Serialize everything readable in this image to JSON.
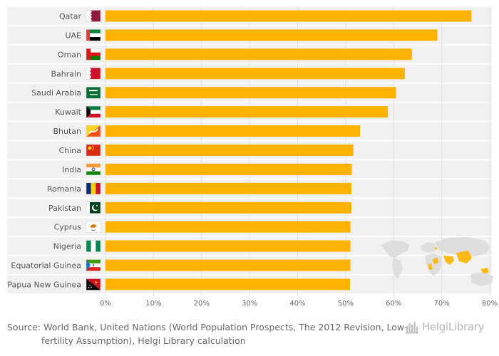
{
  "chart_data": {
    "type": "bar",
    "orientation": "horizontal",
    "title": "",
    "xlabel": "",
    "ylabel": "",
    "xlim": [
      0,
      80
    ],
    "x_ticks": [
      0,
      10,
      20,
      30,
      40,
      50,
      60,
      70,
      80
    ],
    "x_tick_labels": [
      "0%",
      "10%",
      "20%",
      "30%",
      "40%",
      "50%",
      "60%",
      "70%",
      "80%"
    ],
    "grid": true,
    "bar_color": "#ffb300",
    "categories": [
      "Qatar",
      "UAE",
      "Oman",
      "Bahrain",
      "Saudi Arabia",
      "Kuwait",
      "Bhutan",
      "China",
      "India",
      "Romania",
      "Pakistan",
      "Cyprus",
      "Nigeria",
      "Equatorial Guinea",
      "Papua New Guinea"
    ],
    "values": [
      76.2,
      69.1,
      63.8,
      62.3,
      60.5,
      58.8,
      53.0,
      51.6,
      51.3,
      51.2,
      51.2,
      51.0,
      51.0,
      51.0,
      50.9
    ],
    "flags": [
      "qatar",
      "uae",
      "oman",
      "bahrain",
      "saudi-arabia",
      "kuwait",
      "bhutan",
      "china",
      "india",
      "romania",
      "pakistan",
      "cyprus",
      "nigeria",
      "equatorial-guinea",
      "papua-new-guinea"
    ]
  },
  "footer": {
    "source": "Source: World Bank, United Nations (World Population Prospects, The 2012 Revision, Low-fertility Assumption), Helgi Library calculation",
    "logo_text": "HelgiLibrary"
  },
  "colors": {
    "bar": "#ffb300",
    "row_band": "#f1f1f1",
    "map_land": "#dddddd",
    "map_highlight": "#ffb300"
  }
}
